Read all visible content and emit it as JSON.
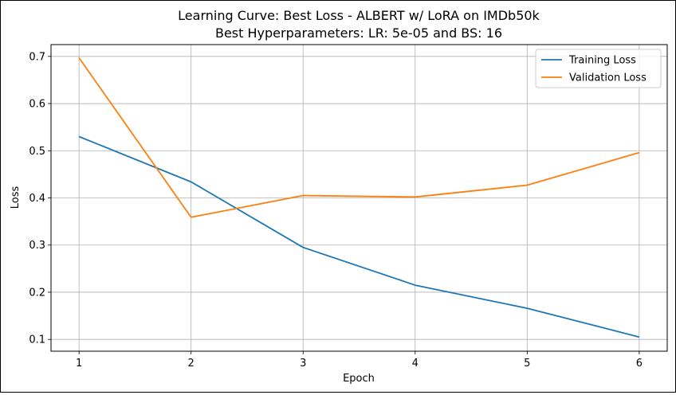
{
  "chart_data": {
    "type": "line",
    "title": "Learning Curve: Best Loss - ALBERT w/ LoRA on IMDb50k",
    "subtitle": "Best Hyperparameters: LR: 5e-05 and BS: 16",
    "xlabel": "Epoch",
    "ylabel": "Loss",
    "x": [
      1,
      2,
      3,
      4,
      5,
      6
    ],
    "xticks": [
      1,
      2,
      3,
      4,
      5,
      6
    ],
    "yticks": [
      0.1,
      0.2,
      0.3,
      0.4,
      0.5,
      0.6,
      0.7
    ],
    "xlim": [
      0.75,
      6.25
    ],
    "ylim": [
      0.075,
      0.725
    ],
    "grid": true,
    "legend_position": "top-right",
    "series": [
      {
        "name": "Training Loss",
        "color": "#1f77b4",
        "values": [
          0.53,
          0.434,
          0.295,
          0.215,
          0.166,
          0.105
        ]
      },
      {
        "name": "Validation Loss",
        "color": "#ff7f0e",
        "values": [
          0.697,
          0.359,
          0.405,
          0.402,
          0.427,
          0.496
        ]
      }
    ]
  }
}
